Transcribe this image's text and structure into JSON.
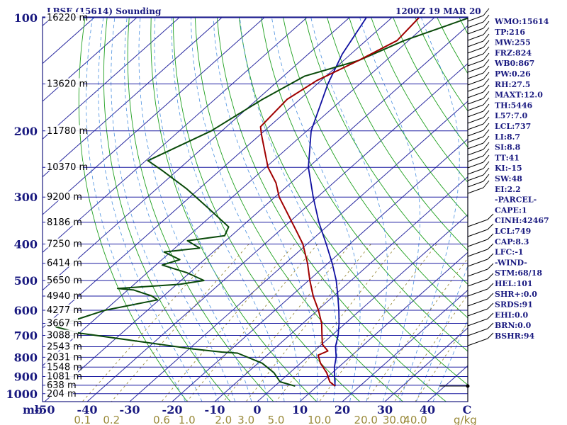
{
  "chart_data": {
    "type": "skew-t sounding",
    "title": "LBSF (15614) Sounding",
    "time_label": "1200Z 19 MAR 20",
    "pressure_axis_ticks": [
      100,
      200,
      300,
      400,
      500,
      600,
      700,
      800,
      900,
      1000
    ],
    "pressure_axis_unit": "mb",
    "temperature_axis_ticks": [
      -50,
      -40,
      -30,
      -20,
      -10,
      0,
      10,
      20,
      30,
      40
    ],
    "temperature_axis_unit": "C",
    "mixing_ratio_ticks": [
      "0.1",
      "0.2",
      "0.6",
      "1.0",
      "2.0",
      "3.0",
      "5.0",
      "10.0",
      "20.0",
      "30.0",
      "40.0"
    ],
    "mixing_ratio_unit": "g/kg",
    "height_labels": [
      {
        "p": 100,
        "label": "16220 m"
      },
      {
        "p": 150,
        "label": "13620 m"
      },
      {
        "p": 200,
        "label": "11780 m"
      },
      {
        "p": 250,
        "label": "10370 m"
      },
      {
        "p": 300,
        "label": "9200 m"
      },
      {
        "p": 350,
        "label": "8186 m"
      },
      {
        "p": 400,
        "label": "7250 m"
      },
      {
        "p": 450,
        "label": "6414 m"
      },
      {
        "p": 500,
        "label": "5650 m"
      },
      {
        "p": 550,
        "label": "4940 m"
      },
      {
        "p": 600,
        "label": "4277 m"
      },
      {
        "p": 650,
        "label": "3667 m"
      },
      {
        "p": 700,
        "label": "3088 m"
      },
      {
        "p": 750,
        "label": "2543 m"
      },
      {
        "p": 800,
        "label": "2031 m"
      },
      {
        "p": 850,
        "label": "1548 m"
      },
      {
        "p": 900,
        "label": "1081 m"
      },
      {
        "p": 950,
        "label": "638 m"
      },
      {
        "p": 1000,
        "label": "204 m"
      }
    ],
    "temperature_profile": [
      [
        100,
        -63.6
      ],
      [
        115,
        -62.7
      ],
      [
        130,
        -66.5
      ],
      [
        147,
        -71
      ],
      [
        165,
        -73
      ],
      [
        195,
        -72
      ],
      [
        205,
        -69.6
      ],
      [
        250,
        -59.5
      ],
      [
        275,
        -53.5
      ],
      [
        300,
        -49
      ],
      [
        330,
        -43
      ],
      [
        372,
        -35.5
      ],
      [
        400,
        -31
      ],
      [
        450,
        -24.8
      ],
      [
        500,
        -19.7
      ],
      [
        550,
        -14.8
      ],
      [
        600,
        -9.8
      ],
      [
        650,
        -5.6
      ],
      [
        700,
        -2.3
      ],
      [
        740,
        0.2
      ],
      [
        770,
        3.2
      ],
      [
        790,
        2
      ],
      [
        830,
        4.7
      ],
      [
        880,
        8.7
      ],
      [
        930,
        11.8
      ],
      [
        955,
        14.2
      ]
    ],
    "dewpoint_profile": [
      [
        100,
        -51.8
      ],
      [
        115,
        -61
      ],
      [
        130,
        -66.5
      ],
      [
        143,
        -75
      ],
      [
        165,
        -78.8
      ],
      [
        200,
        -82.5
      ],
      [
        240,
        -89.5
      ],
      [
        255,
        -83.5
      ],
      [
        285,
        -73
      ],
      [
        320,
        -63
      ],
      [
        360,
        -53
      ],
      [
        380,
        -51.6
      ],
      [
        392,
        -59
      ],
      [
        410,
        -54.2
      ],
      [
        420,
        -61.5
      ],
      [
        440,
        -55.8
      ],
      [
        455,
        -58.5
      ],
      [
        477,
        -50.6
      ],
      [
        500,
        -44.6
      ],
      [
        512,
        -49.3
      ],
      [
        525,
        -62.8
      ],
      [
        530,
        -58.6
      ],
      [
        550,
        -52.7
      ],
      [
        563,
        -50.4
      ],
      [
        600,
        -60
      ],
      [
        650,
        -66
      ],
      [
        665,
        -67
      ],
      [
        690,
        -60
      ],
      [
        760,
        -29.3
      ],
      [
        775,
        -21.5
      ],
      [
        780,
        -17.5
      ],
      [
        830,
        -9
      ],
      [
        880,
        -3.7
      ],
      [
        930,
        0.1
      ],
      [
        955,
        4.8
      ]
    ],
    "parcel_profile": [
      [
        100,
        -76
      ],
      [
        125,
        -72
      ],
      [
        150,
        -67.5
      ],
      [
        200,
        -59
      ],
      [
        250,
        -50
      ],
      [
        300,
        -41
      ],
      [
        350,
        -33
      ],
      [
        400,
        -25.5
      ],
      [
        450,
        -19
      ],
      [
        500,
        -13.5
      ],
      [
        550,
        -9
      ],
      [
        600,
        -5
      ],
      [
        650,
        -1.5
      ],
      [
        700,
        1.5
      ],
      [
        749,
        3.8
      ],
      [
        800,
        6.8
      ],
      [
        850,
        9
      ],
      [
        900,
        11.5
      ],
      [
        955,
        14.2
      ]
    ]
  },
  "indices": [
    "WMO:15614",
    "TP:216",
    "MW:255",
    "FRZ:824",
    "WB0:867",
    "PW:0.26",
    "RH:27.5",
    "MAXT:12.0",
    "TH:5446",
    "L57:7.0",
    "LCL:737",
    "LI:8.7",
    "SI:8.8",
    "TT:41",
    "KI:-15",
    "SW:48",
    "EI:2.2",
    "-PARCEL-",
    "CAPE:1",
    "CINH:42467",
    "LCL:749",
    "CAP:8.3",
    "LFC:-1",
    "-WIND-",
    "STM:68/18",
    "HEL:101",
    "SHR+:0.0",
    "SRDS:91",
    "EHI:0.0",
    "BRN:0.0",
    "BSHR:94"
  ],
  "colors": {
    "temperature": "#a00000",
    "dewpoint": "#0a4a0a",
    "parcel": "#1010a0",
    "isobar": "#1a1aa0",
    "isotherm": "#2a2aa0",
    "dry_adiabat": "#1fa01f",
    "moist_adiabat": "#4a90e0",
    "mixing_ratio": "#9a8a3a",
    "text": "#1a1a80"
  }
}
